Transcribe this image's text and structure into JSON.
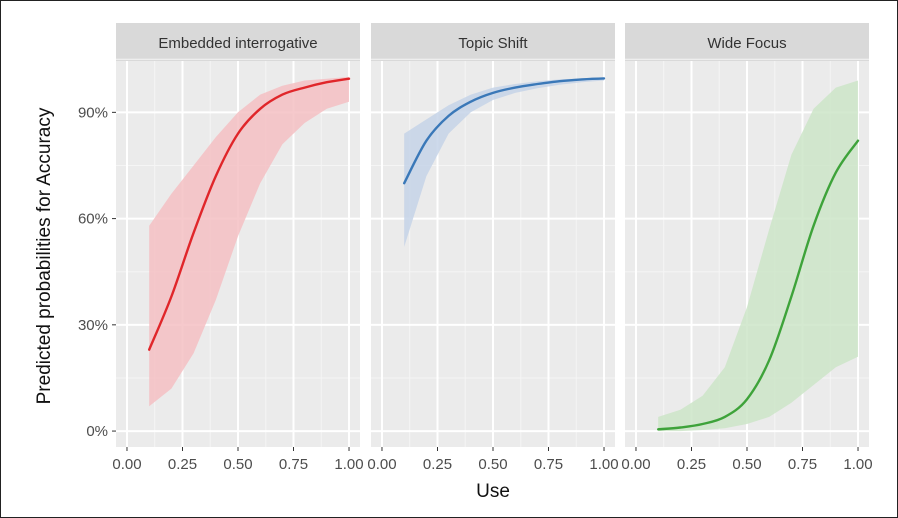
{
  "chart_data": {
    "type": "line",
    "xlabel": "Use",
    "ylabel": "Predicted probabilities for Accuracy",
    "xlim": [
      0.0,
      1.0
    ],
    "ylim": [
      0,
      100
    ],
    "x_ticks": [
      "0.00",
      "0.25",
      "0.50",
      "0.75",
      "1.00"
    ],
    "x_tick_values": [
      0,
      0.25,
      0.5,
      0.75,
      1.0
    ],
    "y_ticks": [
      "0%",
      "30%",
      "60%",
      "90%"
    ],
    "y_tick_values": [
      0,
      30,
      60,
      90
    ],
    "grid": true,
    "legend": "none",
    "panels": [
      {
        "title": "Embedded interrogative",
        "color": "#e0262a",
        "band_color": "#f5bfc3",
        "x": [
          0.1,
          0.2,
          0.3,
          0.4,
          0.5,
          0.6,
          0.7,
          0.8,
          0.9,
          1.0
        ],
        "y": [
          23,
          38,
          56,
          72,
          84,
          91,
          95,
          97,
          98.5,
          99.5
        ],
        "lower": [
          7,
          12,
          22,
          37,
          55,
          70,
          81,
          87,
          91,
          93
        ],
        "upper": [
          58,
          67,
          75,
          83,
          90,
          95,
          97.5,
          99,
          99.5,
          100
        ]
      },
      {
        "title": "Topic Shift",
        "color": "#3a78b8",
        "band_color": "#c6d3e8",
        "x": [
          0.1,
          0.2,
          0.3,
          0.4,
          0.5,
          0.6,
          0.7,
          0.8,
          0.9,
          1.0
        ],
        "y": [
          70,
          82,
          89,
          93,
          95.5,
          97,
          98,
          98.8,
          99.3,
          99.6
        ],
        "lower": [
          52,
          72,
          84,
          90,
          93.5,
          95.5,
          96.8,
          97.8,
          98.5,
          99
        ],
        "upper": [
          84,
          88,
          92,
          95,
          97,
          98,
          98.8,
          99.3,
          99.6,
          99.8
        ]
      },
      {
        "title": "Wide Focus",
        "color": "#3ea33a",
        "band_color": "#cde5c8",
        "x": [
          0.1,
          0.2,
          0.3,
          0.4,
          0.5,
          0.6,
          0.7,
          0.8,
          0.9,
          1.0
        ],
        "y": [
          0.5,
          1,
          2,
          4,
          9,
          20,
          38,
          58,
          73,
          82
        ],
        "lower": [
          0,
          0,
          0.3,
          0.8,
          2,
          4,
          8,
          13,
          18,
          21
        ],
        "upper": [
          4,
          6,
          10,
          18,
          35,
          57,
          78,
          91,
          97,
          99
        ]
      }
    ]
  }
}
